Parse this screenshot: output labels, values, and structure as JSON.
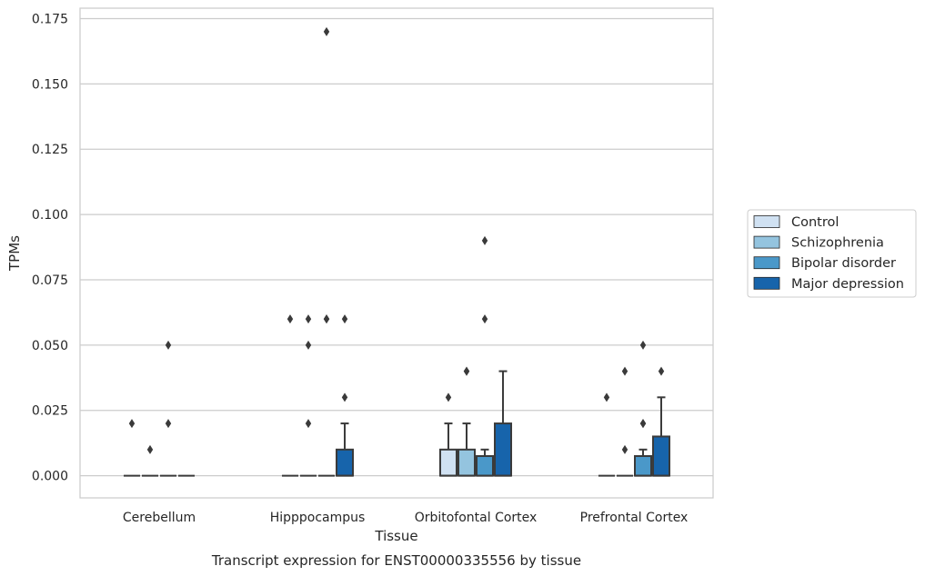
{
  "chart_data": {
    "type": "box",
    "title": "Transcript expression for ENST00000335556 by tissue",
    "xlabel": "Tissue",
    "ylabel": "TPMs",
    "ylim": [
      -0.0085,
      0.179
    ],
    "yticks": [
      0.0,
      0.025,
      0.05,
      0.075,
      0.1,
      0.125,
      0.15,
      0.175
    ],
    "ytick_labels": [
      "0.000",
      "0.025",
      "0.050",
      "0.075",
      "0.100",
      "0.125",
      "0.150",
      "0.175"
    ],
    "grid": "horizontal",
    "legend_position": "right",
    "categories": [
      "Cerebellum",
      "Hipppocampus",
      "Orbitofontal Cortex",
      "Prefrontal Cortex"
    ],
    "series": [
      {
        "name": "Control",
        "color": "#d0e1f2",
        "boxes": [
          {
            "q1": 0,
            "median": 0,
            "q3": 0,
            "whisker_low": 0,
            "whisker_high": 0,
            "outliers": [
              0.02
            ]
          },
          {
            "q1": 0,
            "median": 0,
            "q3": 0,
            "whisker_low": 0,
            "whisker_high": 0,
            "outliers": [
              0.06
            ]
          },
          {
            "q1": 0,
            "median": 0,
            "q3": 0.01,
            "whisker_low": 0,
            "whisker_high": 0.02,
            "outliers": [
              0.03
            ]
          },
          {
            "q1": 0,
            "median": 0,
            "q3": 0,
            "whisker_low": 0,
            "whisker_high": 0,
            "outliers": [
              0.03
            ]
          }
        ]
      },
      {
        "name": "Schizophrenia",
        "color": "#94c4df",
        "boxes": [
          {
            "q1": 0,
            "median": 0,
            "q3": 0,
            "whisker_low": 0,
            "whisker_high": 0,
            "outliers": [
              0.01
            ]
          },
          {
            "q1": 0,
            "median": 0,
            "q3": 0,
            "whisker_low": 0,
            "whisker_high": 0,
            "outliers": [
              0.02,
              0.05,
              0.06
            ]
          },
          {
            "q1": 0,
            "median": 0,
            "q3": 0.01,
            "whisker_low": 0,
            "whisker_high": 0.02,
            "outliers": [
              0.04,
              0.04
            ]
          },
          {
            "q1": 0,
            "median": 0,
            "q3": 0,
            "whisker_low": 0,
            "whisker_high": 0,
            "outliers": [
              0.01,
              0.04
            ]
          }
        ]
      },
      {
        "name": "Bipolar disorder",
        "color": "#4a98c9",
        "boxes": [
          {
            "q1": 0,
            "median": 0,
            "q3": 0,
            "whisker_low": 0,
            "whisker_high": 0,
            "outliers": [
              0.02,
              0.05
            ]
          },
          {
            "q1": 0,
            "median": 0,
            "q3": 0,
            "whisker_low": 0,
            "whisker_high": 0,
            "outliers": [
              0.06,
              0.06,
              0.17
            ]
          },
          {
            "q1": 0,
            "median": 0,
            "q3": 0.0075,
            "whisker_low": 0,
            "whisker_high": 0.01,
            "outliers": [
              0.06,
              0.09
            ]
          },
          {
            "q1": 0,
            "median": 0,
            "q3": 0.0075,
            "whisker_low": 0,
            "whisker_high": 0.01,
            "outliers": [
              0.02,
              0.02,
              0.05
            ]
          }
        ]
      },
      {
        "name": "Major depression",
        "color": "#1764ab",
        "boxes": [
          {
            "q1": 0,
            "median": 0,
            "q3": 0,
            "whisker_low": 0,
            "whisker_high": 0,
            "outliers": []
          },
          {
            "q1": 0,
            "median": 0,
            "q3": 0.01,
            "whisker_low": 0,
            "whisker_high": 0.02,
            "outliers": [
              0.03,
              0.06
            ]
          },
          {
            "q1": 0,
            "median": 0,
            "q3": 0.02,
            "whisker_low": 0,
            "whisker_high": 0.04,
            "outliers": []
          },
          {
            "q1": 0,
            "median": 0,
            "q3": 0.015,
            "whisker_low": 0,
            "whisker_high": 0.03,
            "outliers": [
              0.04
            ]
          }
        ]
      }
    ]
  }
}
